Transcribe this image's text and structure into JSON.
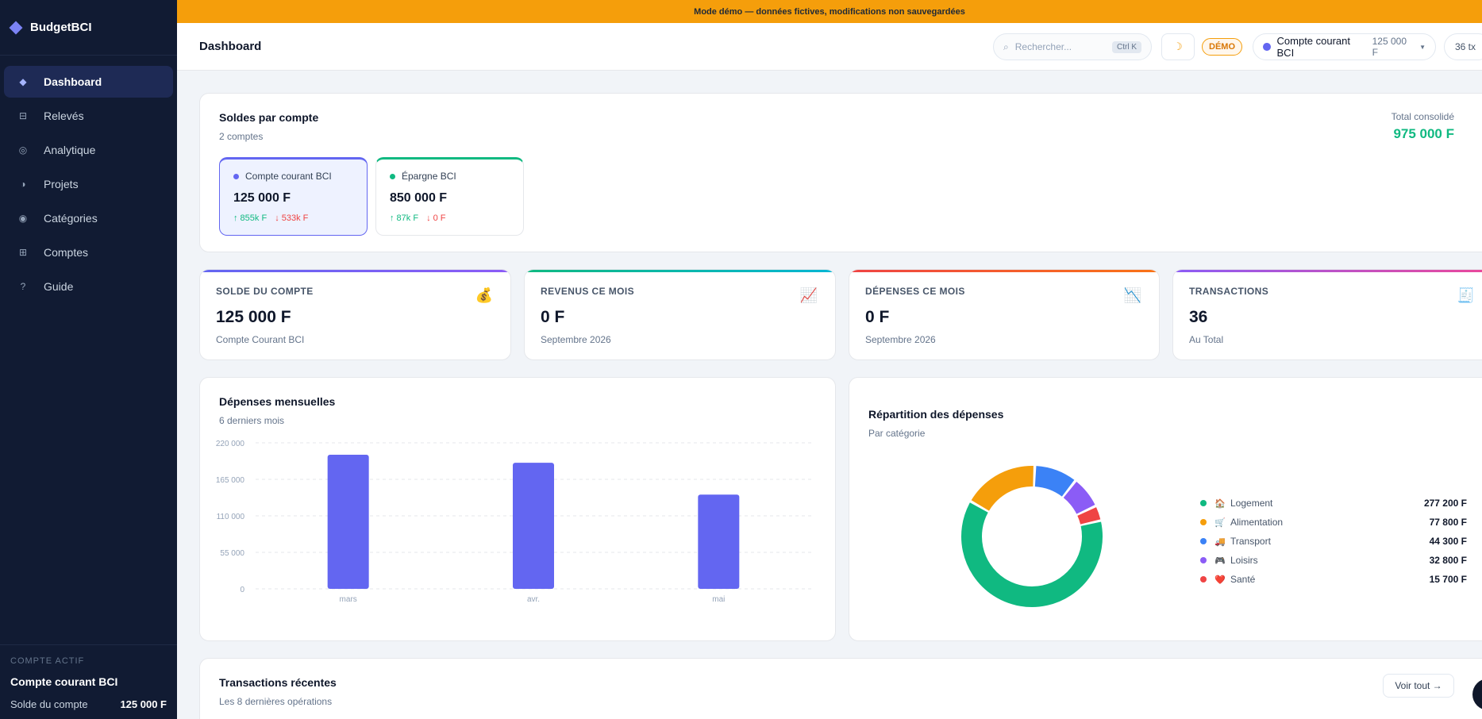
{
  "banner": "Mode démo — données fictives, modifications non sauvegardées",
  "brand": "BudgetBCI",
  "sidebar": {
    "items": [
      {
        "label": "Dashboard",
        "icon": "diamond-icon"
      },
      {
        "label": "Relevés",
        "icon": "statement-icon"
      },
      {
        "label": "Analytique",
        "icon": "analytics-icon"
      },
      {
        "label": "Projets",
        "icon": "projects-icon"
      },
      {
        "label": "Catégories",
        "icon": "categories-icon"
      },
      {
        "label": "Comptes",
        "icon": "accounts-icon"
      },
      {
        "label": "Guide",
        "icon": "help-icon"
      }
    ],
    "footer": {
      "caption": "COMPTE ACTIF",
      "account": "Compte courant BCI",
      "balance_label": "Solde du compte",
      "balance_value": "125 000 F"
    }
  },
  "header": {
    "title": "Dashboard",
    "search_placeholder": "Rechercher...",
    "search_shortcut": "Ctrl K",
    "demo_badge": "DÉMO",
    "account_name": "Compte courant BCI",
    "account_balance": "125 000 F",
    "tx_count": "36 tx"
  },
  "soldes": {
    "title": "Soldes par compte",
    "subtitle": "2 comptes",
    "total_label": "Total consolidé",
    "total_value": "975 000 F",
    "accounts": [
      {
        "name": "Compte courant BCI",
        "amount": "125 000 F",
        "in": "↑ 855k F",
        "out": "↓ 533k F",
        "color": "#6366f1"
      },
      {
        "name": "Épargne BCI",
        "amount": "850 000 F",
        "in": "↑ 87k F",
        "out": "↓ 0 F",
        "color": "#10b981"
      }
    ]
  },
  "stats": [
    {
      "label": "SOLDE DU COMPTE",
      "value": "125 000 F",
      "sub": "Compte Courant BCI",
      "emoji": "💰"
    },
    {
      "label": "REVENUS CE MOIS",
      "value": "0 F",
      "sub": "Septembre 2026",
      "emoji": "📈"
    },
    {
      "label": "DÉPENSES CE MOIS",
      "value": "0 F",
      "sub": "Septembre 2026",
      "emoji": "📉"
    },
    {
      "label": "TRANSACTIONS",
      "value": "36",
      "sub": "Au Total",
      "emoji": "🧾"
    }
  ],
  "monthly": {
    "title": "Dépenses mensuelles",
    "subtitle": "6 derniers mois",
    "chart_data": {
      "type": "bar",
      "categories": [
        "mars",
        "avr.",
        "mai"
      ],
      "values": [
        202000,
        190000,
        142000
      ],
      "ylim": [
        0,
        220000
      ],
      "yticks": [
        0,
        55000,
        110000,
        165000,
        220000
      ],
      "ytick_labels": [
        "0",
        "55 000",
        "110 000",
        "165 000",
        "220 000"
      ],
      "color": "#6366f1",
      "grid": true
    }
  },
  "breakdown": {
    "title": "Répartition des dépenses",
    "subtitle": "Par catégorie",
    "chart_data": {
      "type": "pie",
      "categories": [
        "Logement",
        "Alimentation",
        "Transport",
        "Loisirs",
        "Santé"
      ],
      "values": [
        277200,
        77800,
        44300,
        32800,
        15700
      ],
      "labels": [
        "277 200 F",
        "77 800 F",
        "44 300 F",
        "32 800 F",
        "15 700 F"
      ],
      "emojis": [
        "🏠",
        "🛒",
        "🚚",
        "🎮",
        "❤️"
      ],
      "colors": [
        "#10b981",
        "#f59e0b",
        "#3b82f6",
        "#8b5cf6",
        "#ef4444"
      ],
      "legend": "right"
    }
  },
  "recent": {
    "title": "Transactions récentes",
    "subtitle": "Les 8 dernières opérations",
    "button": "Voir tout →"
  }
}
